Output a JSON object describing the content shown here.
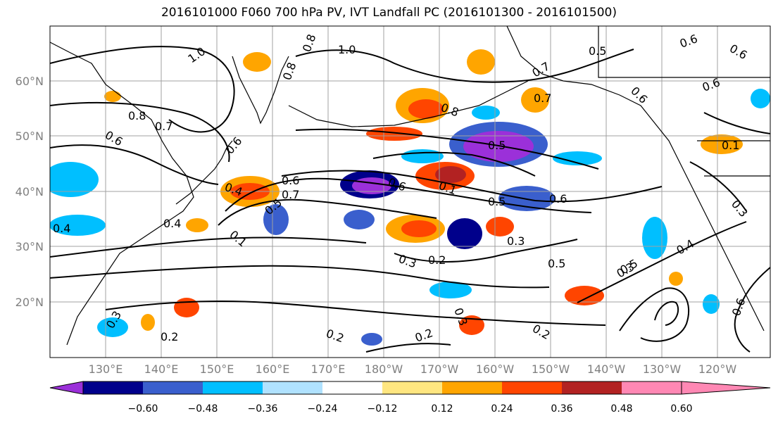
{
  "title": "2016101000 F060 700 hPa PV, IVT Landfall PC (2016101300 - 2016101500)",
  "lat_labels": [
    "60°N",
    "50°N",
    "40°N",
    "30°N",
    "20°N"
  ],
  "lon_labels": [
    "130°E",
    "140°E",
    "150°E",
    "160°E",
    "170°E",
    "180°W",
    "170°W",
    "160°W",
    "150°W",
    "140°W",
    "130°W",
    "120°W"
  ],
  "colorbar": {
    "colors": [
      "#9b30d9",
      "#00008b",
      "#3a5fcd",
      "#00bfff",
      "#b0e2ff",
      "#ffffff",
      "#ffe680",
      "#ffa500",
      "#ff4500",
      "#b22222",
      "#ff88b4"
    ],
    "tick_labels": [
      "−0.60",
      "−0.48",
      "−0.36",
      "−0.24",
      "−0.12",
      "0.12",
      "0.24",
      "0.36",
      "0.48",
      "0.60"
    ]
  },
  "contour_labels": [
    "1.0",
    "1.0",
    "0.8",
    "0.5",
    "0.6",
    "0.6",
    "0.8",
    "0.7",
    "0.6",
    "0.7",
    "0.8",
    "0.5",
    "0.6",
    "0.4",
    "0.6",
    "0.7",
    "0.5",
    "0.1",
    "0.6",
    "0.1",
    "0.5",
    "0.6",
    "0.4",
    "0.4",
    "0.3",
    "0.2",
    "0.3",
    "0.5",
    "0.3",
    "0.5",
    "0.4",
    "0.2",
    "0.3",
    "0.2",
    "0.2",
    "0.2",
    "0.3",
    "0.1",
    "0.3",
    "0.6",
    "0.6",
    "0.6",
    "0.7",
    "0.8"
  ],
  "map_colors": {
    "coastline": "#000000",
    "gridline": "#a0a0a0",
    "contour": "#000000"
  }
}
